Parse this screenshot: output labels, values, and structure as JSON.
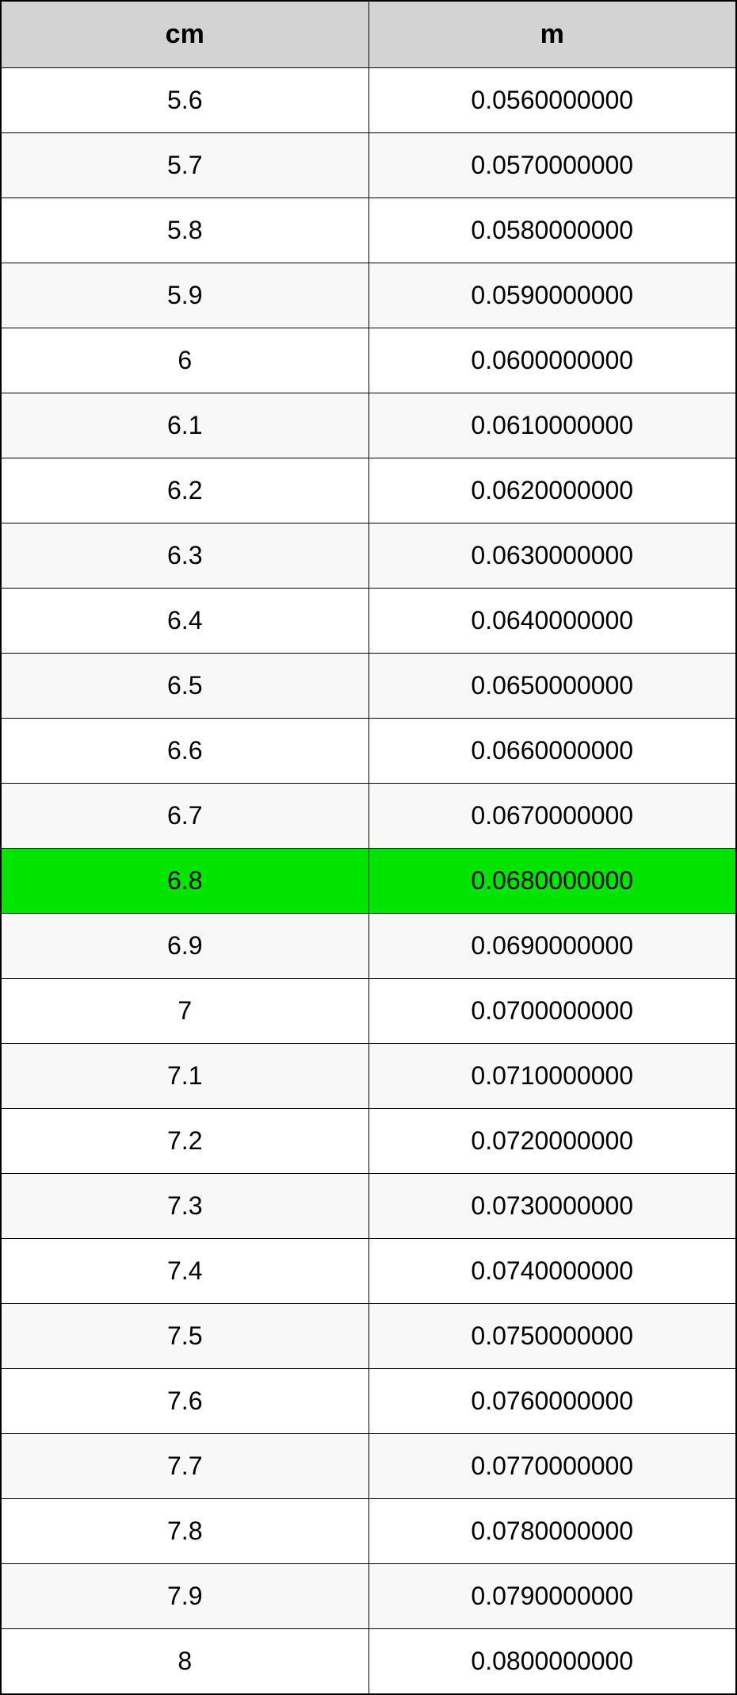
{
  "table": {
    "columns": [
      "cm",
      "m"
    ],
    "header_bg": "#d3d3d3",
    "header_fontsize": 34,
    "cell_fontsize": 32,
    "border_color": "#000000",
    "row_bg_even": "#ffffff",
    "row_bg_odd": "#f8f8f8",
    "highlight_bg": "#00e400",
    "highlight_index": 12,
    "rows": [
      [
        "5.6",
        "0.0560000000"
      ],
      [
        "5.7",
        "0.0570000000"
      ],
      [
        "5.8",
        "0.0580000000"
      ],
      [
        "5.9",
        "0.0590000000"
      ],
      [
        "6",
        "0.0600000000"
      ],
      [
        "6.1",
        "0.0610000000"
      ],
      [
        "6.2",
        "0.0620000000"
      ],
      [
        "6.3",
        "0.0630000000"
      ],
      [
        "6.4",
        "0.0640000000"
      ],
      [
        "6.5",
        "0.0650000000"
      ],
      [
        "6.6",
        "0.0660000000"
      ],
      [
        "6.7",
        "0.0670000000"
      ],
      [
        "6.8",
        "0.0680000000"
      ],
      [
        "6.9",
        "0.0690000000"
      ],
      [
        "7",
        "0.0700000000"
      ],
      [
        "7.1",
        "0.0710000000"
      ],
      [
        "7.2",
        "0.0720000000"
      ],
      [
        "7.3",
        "0.0730000000"
      ],
      [
        "7.4",
        "0.0740000000"
      ],
      [
        "7.5",
        "0.0750000000"
      ],
      [
        "7.6",
        "0.0760000000"
      ],
      [
        "7.7",
        "0.0770000000"
      ],
      [
        "7.8",
        "0.0780000000"
      ],
      [
        "7.9",
        "0.0790000000"
      ],
      [
        "8",
        "0.0800000000"
      ]
    ]
  }
}
